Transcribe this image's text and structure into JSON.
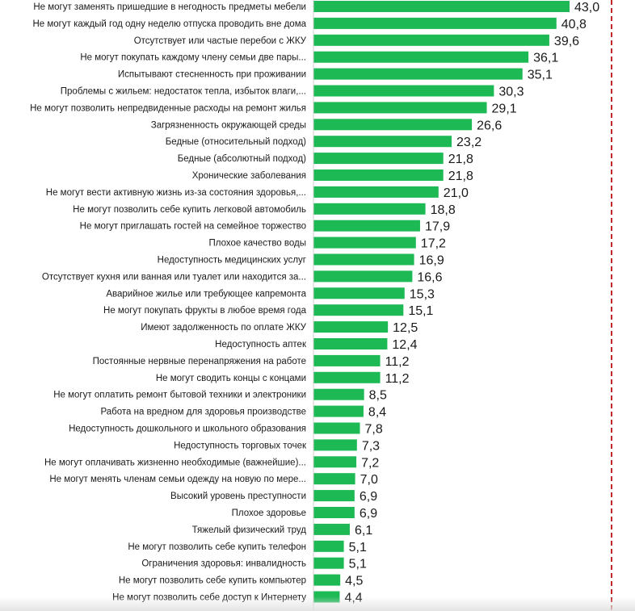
{
  "chart_data": {
    "type": "bar",
    "orientation": "horizontal",
    "bar_color": "#1db954",
    "reference_line_color": "#c0282d",
    "decimal_separator": ",",
    "xlim": [
      0,
      43.0
    ],
    "categories": [
      "Не могут заменять пришедшие в негодность предметы мебели",
      "Не могут каждый год одну неделю отпуска проводить вне дома",
      "Отсутствует или частые перебои с ЖКУ",
      "Не могут покупать каждому члену семьи две пары...",
      "Испытывают стесненность при проживании",
      "Проблемы с жильем: недостаток тепла, избыток влаги,...",
      "Не могут позволить непредвиденные расходы на ремонт жилья",
      "Загрязненность окружающей среды",
      "Бедные  (относительный подход)",
      "Бедные  (абсолютный подход)",
      "Хронические заболевания",
      "Не могут вести активную жизнь из-за состояния здоровья,...",
      "Не могут позволить себе купить легковой автомобиль",
      "Не могут приглашать гостей на семейное торжество",
      "Плохое качество воды",
      "Недоступность медицинских услуг",
      "Отсутствует кухня или ванная или туалет или находится за...",
      "Аварийное жилье или требующее капремонта",
      "Не могут покупать фрукты в любое время года",
      "Имеют задолженность по оплате ЖКУ",
      "Недоступность аптек",
      "Постоянные нервные перенапряжения на работе",
      "Не могут сводить концы с концами",
      "Не могут оплатить ремонт бытовой техники и электроники",
      "Работа на вредном для здоровья производстве",
      "Недоступность дошкольного и школьного образования",
      "Недоступность торговых точек",
      "Не могут оплачивать жизненно необходимые (важнейшие)...",
      "Не могут менять членам семьи одежду на новую по мере...",
      "Высокий уровень преступности",
      "Плохое здоровье",
      "Тяжелый физический труд",
      "Не могут позволить себе купить телефон",
      "Ограничения здоровья: инвалидность",
      "Не могут позволить себе купить компьютер",
      "Не могут позволить себе доступ к Интернету"
    ],
    "values": [
      43.0,
      40.8,
      39.6,
      36.1,
      35.1,
      30.3,
      29.1,
      26.6,
      23.2,
      21.8,
      21.8,
      21.0,
      18.8,
      17.9,
      17.2,
      16.9,
      16.6,
      15.3,
      15.1,
      12.5,
      12.4,
      11.2,
      11.2,
      8.5,
      8.4,
      7.8,
      7.3,
      7.2,
      7.0,
      6.9,
      6.9,
      6.1,
      5.1,
      5.1,
      4.5,
      4.4
    ]
  }
}
